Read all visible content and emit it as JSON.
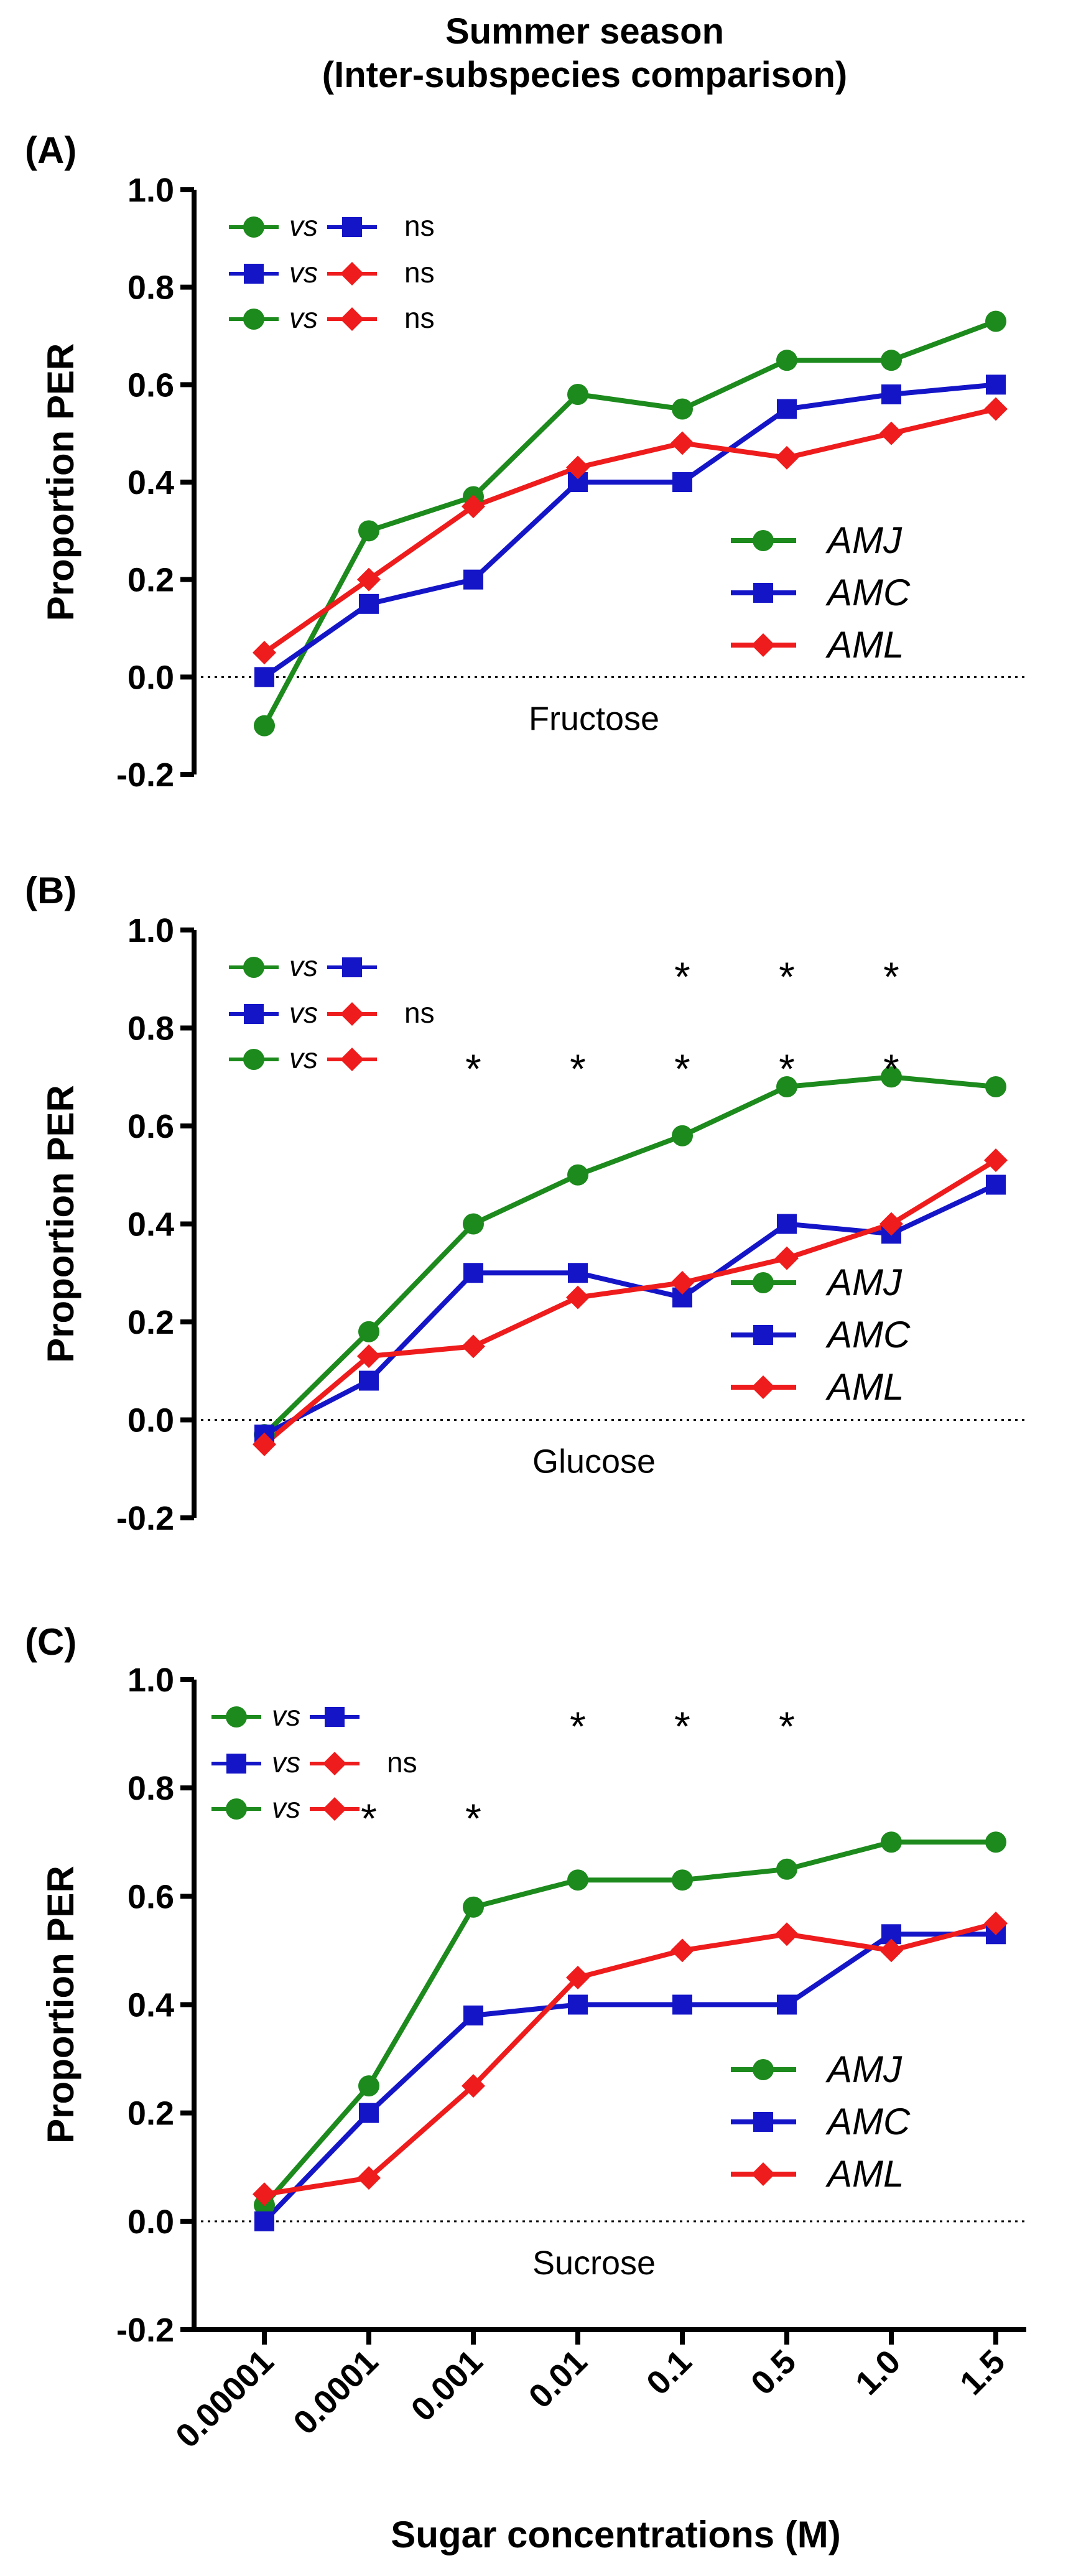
{
  "figure": {
    "title_line1": "Summer season",
    "title_line2": "(Inter-subspecies comparison)",
    "xlabel": "Sugar concentrations (M)",
    "categories": [
      "0.00001",
      "0.0001",
      "0.001",
      "0.01",
      "0.1",
      "0.5",
      "1.0",
      "1.5"
    ],
    "ylabel": "Proportion PER",
    "yticks": [
      "-0.2",
      "0.0",
      "0.2",
      "0.4",
      "0.6",
      "0.8",
      "1.0"
    ],
    "vs_text": "vs",
    "colors": {
      "AMJ": "#1c8a1c",
      "AMC": "#1515c8",
      "AML": "#ee1c1c",
      "axis": "#000000"
    }
  },
  "chart_data": [
    {
      "type": "line",
      "panel_label": "(A)",
      "sugar_label": "Fructose",
      "categories": [
        "0.00001",
        "0.0001",
        "0.001",
        "0.01",
        "0.1",
        "0.5",
        "1.0",
        "1.5"
      ],
      "ylim": [
        -0.2,
        1.0
      ],
      "ylabel": "Proportion PER",
      "xlabel": "Sugar concentrations (M)",
      "legend_position": "right",
      "series": [
        {
          "name": "AMJ",
          "marker": "circle",
          "values": [
            -0.1,
            0.3,
            0.37,
            0.58,
            0.55,
            0.65,
            0.65,
            0.73
          ]
        },
        {
          "name": "AMC",
          "marker": "square",
          "values": [
            0.0,
            0.15,
            0.2,
            0.4,
            0.4,
            0.55,
            0.58,
            0.6
          ]
        },
        {
          "name": "AML",
          "marker": "diamond",
          "values": [
            0.05,
            0.2,
            0.35,
            0.43,
            0.48,
            0.45,
            0.5,
            0.55
          ]
        }
      ],
      "comparisons": [
        {
          "pair": [
            "AMJ",
            "AMC"
          ],
          "result": "ns",
          "significant_at": []
        },
        {
          "pair": [
            "AMC",
            "AML"
          ],
          "result": "ns",
          "significant_at": []
        },
        {
          "pair": [
            "AMJ",
            "AML"
          ],
          "result": "ns",
          "significant_at": []
        }
      ]
    },
    {
      "type": "line",
      "panel_label": "(B)",
      "sugar_label": "Glucose",
      "categories": [
        "0.00001",
        "0.0001",
        "0.001",
        "0.01",
        "0.1",
        "0.5",
        "1.0",
        "1.5"
      ],
      "ylim": [
        -0.2,
        1.0
      ],
      "ylabel": "Proportion PER",
      "xlabel": "Sugar concentrations (M)",
      "legend_position": "right",
      "series": [
        {
          "name": "AMJ",
          "marker": "circle",
          "values": [
            -0.03,
            0.18,
            0.4,
            0.5,
            0.58,
            0.68,
            0.7,
            0.68
          ]
        },
        {
          "name": "AMC",
          "marker": "square",
          "values": [
            -0.03,
            0.08,
            0.3,
            0.3,
            0.25,
            0.4,
            0.38,
            0.48
          ]
        },
        {
          "name": "AML",
          "marker": "diamond",
          "values": [
            -0.05,
            0.13,
            0.15,
            0.25,
            0.28,
            0.33,
            0.4,
            0.53
          ]
        }
      ],
      "comparisons": [
        {
          "pair": [
            "AMJ",
            "AMC"
          ],
          "result": "",
          "significant_at": [
            "0.1",
            "0.5",
            "1.0"
          ]
        },
        {
          "pair": [
            "AMC",
            "AML"
          ],
          "result": "ns",
          "significant_at": []
        },
        {
          "pair": [
            "AMJ",
            "AML"
          ],
          "result": "",
          "significant_at": [
            "0.001",
            "0.01",
            "0.1",
            "0.5",
            "1.0"
          ]
        }
      ]
    },
    {
      "type": "line",
      "panel_label": "(C)",
      "sugar_label": "Sucrose",
      "categories": [
        "0.00001",
        "0.0001",
        "0.001",
        "0.01",
        "0.1",
        "0.5",
        "1.0",
        "1.5"
      ],
      "ylim": [
        -0.2,
        1.0
      ],
      "ylabel": "Proportion PER",
      "xlabel": "Sugar concentrations (M)",
      "legend_position": "right",
      "series": [
        {
          "name": "AMJ",
          "marker": "circle",
          "values": [
            0.03,
            0.25,
            0.58,
            0.63,
            0.63,
            0.65,
            0.7,
            0.7
          ]
        },
        {
          "name": "AMC",
          "marker": "square",
          "values": [
            0.0,
            0.2,
            0.38,
            0.4,
            0.4,
            0.4,
            0.53,
            0.53
          ]
        },
        {
          "name": "AML",
          "marker": "diamond",
          "values": [
            0.05,
            0.08,
            0.25,
            0.45,
            0.5,
            0.53,
            0.5,
            0.55
          ]
        }
      ],
      "comparisons": [
        {
          "pair": [
            "AMJ",
            "AMC"
          ],
          "result": "",
          "significant_at": [
            "0.01",
            "0.1",
            "0.5"
          ]
        },
        {
          "pair": [
            "AMC",
            "AML"
          ],
          "result": "ns",
          "significant_at": []
        },
        {
          "pair": [
            "AMJ",
            "AML"
          ],
          "result": "",
          "significant_at": [
            "0.0001",
            "0.001"
          ]
        }
      ]
    }
  ]
}
